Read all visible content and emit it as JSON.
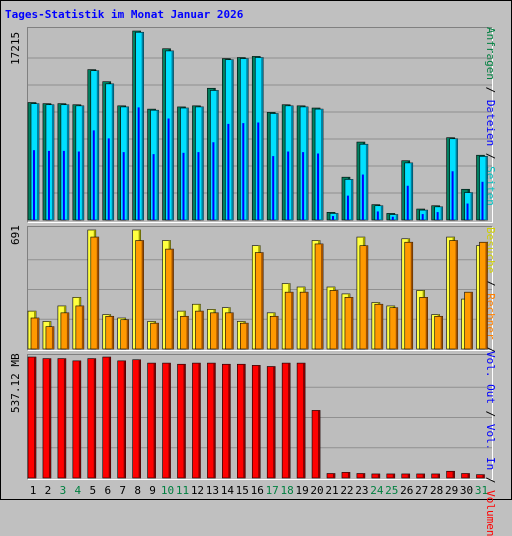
{
  "title": "Tages-Statistik im Monat Januar 2026",
  "panels": {
    "top_max_label": "17215",
    "mid_max_label": "691",
    "bottom_max_label": "537.12 MB"
  },
  "legend": {
    "top": [
      {
        "text": "Anfragen",
        "color": "#008040"
      },
      {
        "text": "Dateien",
        "color": "#0000ff"
      },
      {
        "text": "Seiten",
        "color": "#00c0c0"
      }
    ],
    "mid": [
      {
        "text": "Besuche",
        "color": "#e0e000"
      },
      {
        "text": "Rechner",
        "color": "#ff8000"
      }
    ],
    "bottom": [
      {
        "text": "Vol. Out",
        "color": "#0000ff"
      },
      {
        "text": "Vol. In",
        "color": "#0000ff"
      },
      {
        "text": "Volumen",
        "color": "#ff0000"
      }
    ]
  },
  "colors": {
    "anfragen": "#008060",
    "dateien": "#0000ff",
    "seiten": "#00e0ff",
    "besuche": "#ffff40",
    "rechner": "#ff9900",
    "volumen": "#ff0000",
    "weekday_label": "#000000",
    "weekend_label": "#008040"
  },
  "chart_data": {
    "type": "bar",
    "title": "Tages-Statistik im Monat Januar 2026",
    "categories": [
      "1",
      "2",
      "3",
      "4",
      "5",
      "6",
      "7",
      "8",
      "9",
      "10",
      "11",
      "12",
      "13",
      "14",
      "15",
      "16",
      "17",
      "18",
      "19",
      "20",
      "21",
      "22",
      "23",
      "24",
      "25",
      "26",
      "27",
      "28",
      "29",
      "30",
      "31"
    ],
    "weekend_days": [
      "3",
      "4",
      "10",
      "11",
      "17",
      "18",
      "24",
      "25",
      "31"
    ],
    "panels": [
      {
        "max": 17215,
        "series": [
          {
            "name": "Anfragen",
            "values": [
              10700,
              10600,
              10600,
              10500,
              13700,
              12600,
              10400,
              17215,
              10100,
              15600,
              10300,
              10400,
              12000,
              14700,
              14800,
              14900,
              9800,
              10500,
              10400,
              10200,
              700,
              3900,
              7100,
              1400,
              600,
              5400,
              1000,
              1300,
              7500,
              2800,
              5900
            ]
          },
          {
            "name": "Seiten",
            "values": [
              10600,
              10500,
              10500,
              10400,
              13600,
              12400,
              10300,
              17100,
              10000,
              15400,
              10200,
              10300,
              11800,
              14600,
              14700,
              14800,
              9700,
              10400,
              10300,
              10100,
              600,
              3700,
              6900,
              1300,
              500,
              5200,
              900,
              1200,
              7400,
              2500,
              5800
            ]
          }
        ]
      },
      {
        "max": 691,
        "series": [
          {
            "name": "Besuche",
            "values": [
              220,
              160,
              250,
              300,
              691,
              200,
              180,
              691,
              160,
              630,
              220,
              260,
              230,
              240,
              160,
              600,
              210,
              380,
              360,
              630,
              360,
              320,
              650,
              270,
              250,
              640,
              340,
              200,
              650,
              290,
              600
            ]
          },
          {
            "name": "Rechner",
            "values": [
              180,
              130,
              210,
              250,
              650,
              190,
              170,
              630,
              150,
              580,
              190,
              220,
              210,
              210,
              150,
              560,
              190,
              330,
              330,
              610,
              340,
              300,
              600,
              260,
              240,
              620,
              300,
              190,
              630,
              330,
              620
            ]
          }
        ]
      },
      {
        "max": 537.12,
        "series": [
          {
            "name": "Volumen",
            "values": [
              537,
              530,
              530,
              520,
              530,
              537,
              520,
              525,
              510,
              510,
              505,
              510,
              510,
              505,
              505,
              500,
              495,
              510,
              510,
              300,
              20,
              25,
              20,
              18,
              18,
              18,
              18,
              18,
              30,
              20,
              15
            ]
          }
        ]
      }
    ]
  }
}
